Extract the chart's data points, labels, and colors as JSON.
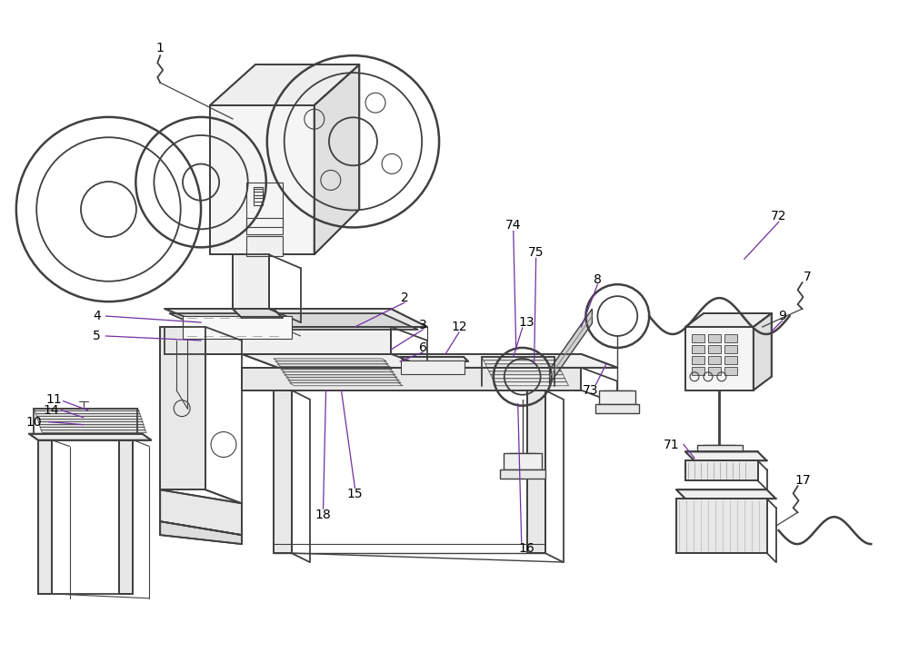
{
  "bg_color": "#ffffff",
  "line_color": "#404040",
  "lc2": "#555555",
  "fig_width": 10.0,
  "fig_height": 7.29,
  "dpi": 100,
  "leader_color": "#7030a0",
  "label_fontsize": 10
}
